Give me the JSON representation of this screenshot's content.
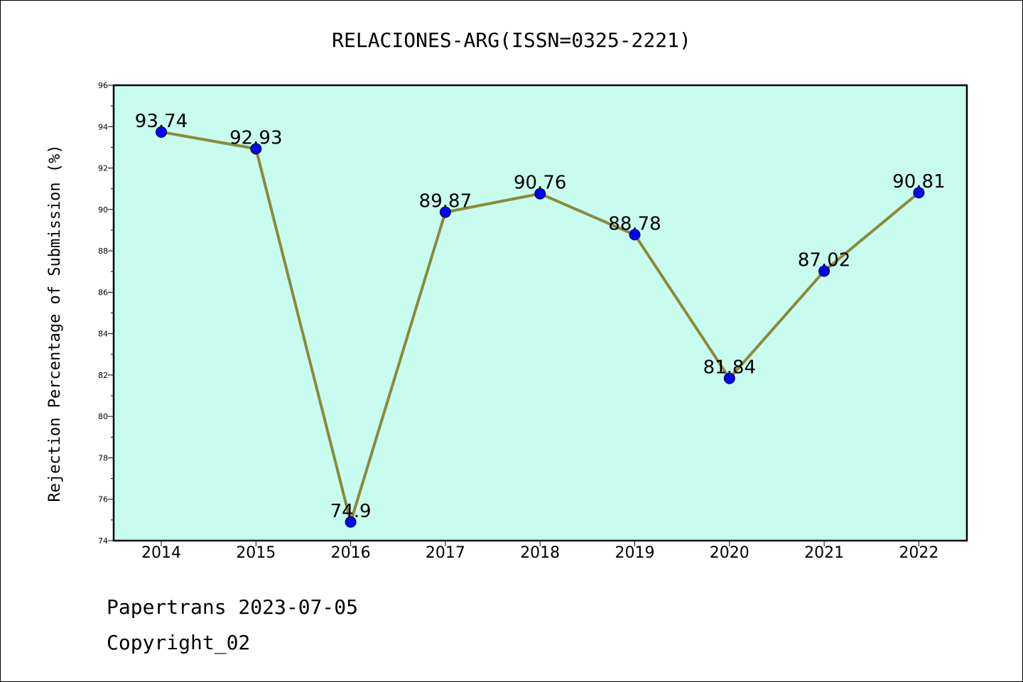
{
  "chart_data": {
    "type": "line",
    "title": "RELACIONES-ARG(ISSN=0325-2221)",
    "xlabel": "",
    "ylabel": "Rejection Percentage of Submission (%)",
    "categories": [
      "2014",
      "2015",
      "2016",
      "2017",
      "2018",
      "2019",
      "2020",
      "2021",
      "2022"
    ],
    "series": [
      {
        "values": [
          93.74,
          92.93,
          74.9,
          89.87,
          90.76,
          88.78,
          81.84,
          87.02,
          90.81
        ],
        "data_labels": [
          "93.74",
          "92.93",
          "74.9",
          "89.87",
          "90.76",
          "88.78",
          "81.84",
          "87.02",
          "90.81"
        ]
      }
    ],
    "ylim": [
      74,
      96
    ],
    "yticks": [
      "74",
      "76",
      "78",
      "80",
      "82",
      "84",
      "86",
      "88",
      "90",
      "92",
      "94",
      "96"
    ],
    "grid": false,
    "legend": "none",
    "colors": {
      "plot_background": "#c8fcee",
      "line": "#8b8a3a",
      "marker": "#0000ff"
    }
  },
  "footer": {
    "line1": "Papertrans 2023-07-05",
    "line2": "Copyright_02"
  }
}
